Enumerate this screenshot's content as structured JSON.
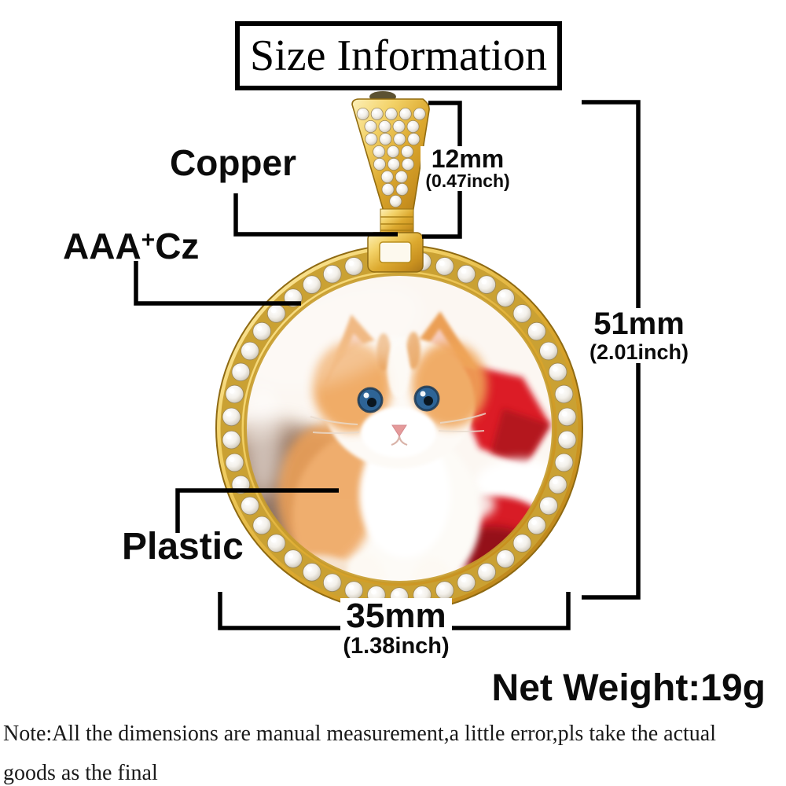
{
  "title": "Size Information",
  "annotations": {
    "copper": "Copper",
    "cz_base": "AAA",
    "cz_sup": "+",
    "cz_rest": "Cz",
    "plastic": "Plastic"
  },
  "dimensions": {
    "bail": {
      "mm": "12mm",
      "inch": "(0.47inch)"
    },
    "height": {
      "mm": "51mm",
      "inch": "(2.01inch)"
    },
    "width": {
      "mm": "35mm",
      "inch": "(1.38inch)"
    }
  },
  "net_weight": "Net Weight:19g",
  "note": {
    "line1": "Note:All the dimensions are manual measurement,a little error,pls take the actual",
    "line2": "goods as the final"
  },
  "colors": {
    "line_black": "#000000",
    "gold": "#dca92f",
    "gold_light": "#fdf0b8",
    "gold_dark": "#a9761a",
    "stone_white": "#f5f2ec",
    "hat_red": "#d81f26",
    "kitten_orange": "#efa458",
    "eye_blue": "#2e6496"
  }
}
